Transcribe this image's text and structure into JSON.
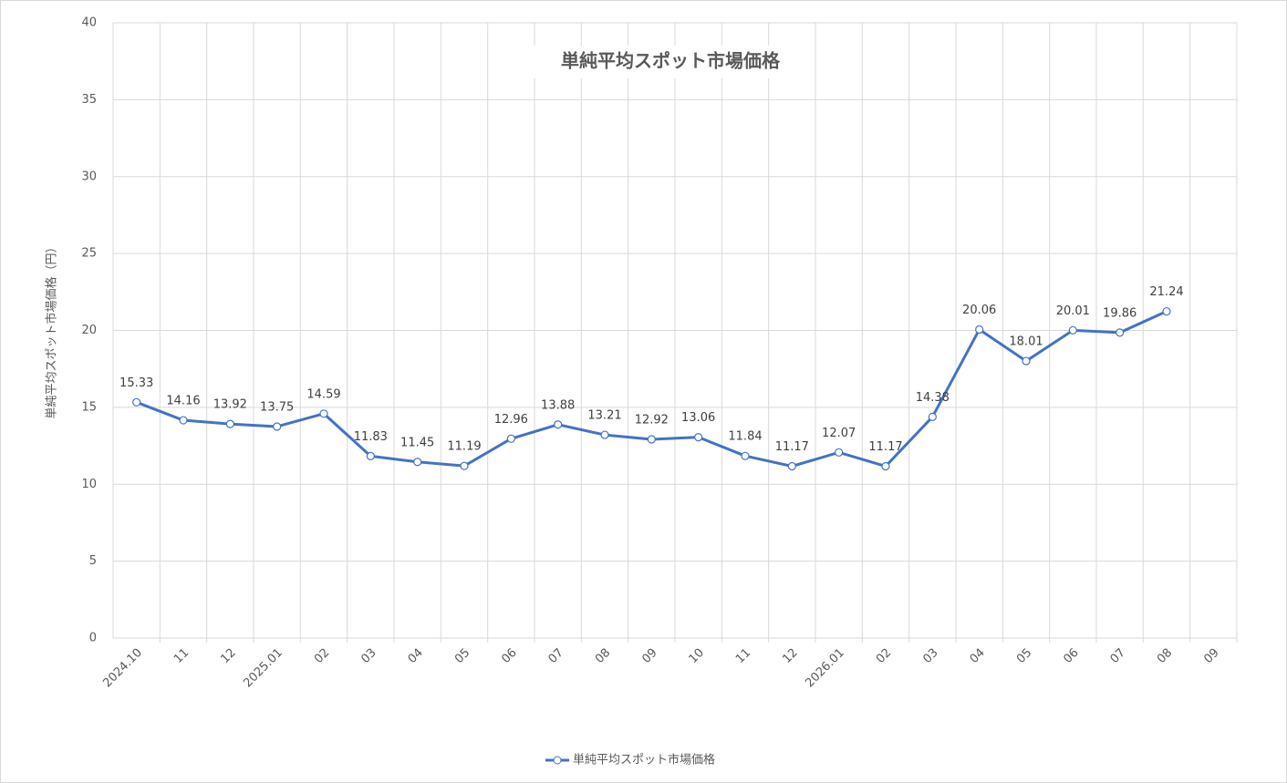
{
  "chart_data": {
    "type": "line",
    "title": "単純平均スポット市場価格",
    "y_label": "単純平均スポット市場価格（円）",
    "categories": [
      "2024.10",
      "11",
      "12",
      "2025.01",
      "02",
      "03",
      "04",
      "05",
      "06",
      "07",
      "08",
      "09",
      "10",
      "11",
      "12",
      "2026.01",
      "02",
      "03",
      "04",
      "05",
      "06",
      "07",
      "08",
      "09"
    ],
    "series": [
      {
        "name": "単純平均スポット市場価格",
        "color": "#4472c4",
        "values": [
          15.33,
          14.16,
          13.92,
          13.75,
          14.59,
          11.83,
          11.45,
          11.19,
          12.96,
          13.88,
          13.21,
          12.92,
          13.06,
          11.84,
          11.17,
          12.07,
          11.17,
          14.38,
          20.06,
          18.01,
          20.01,
          19.86,
          21.24,
          null
        ]
      }
    ],
    "ylim": [
      0,
      40
    ],
    "yticks": [
      0,
      5,
      10,
      15,
      20,
      25,
      30,
      35,
      40
    ],
    "grid": true,
    "legend": "bottom"
  }
}
